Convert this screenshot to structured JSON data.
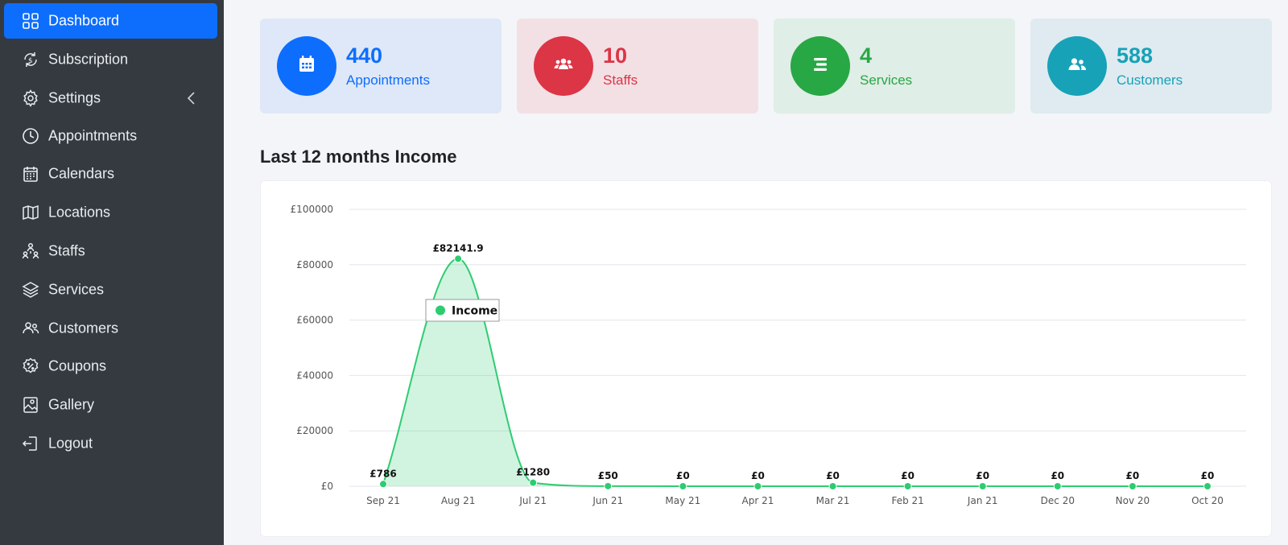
{
  "sidebar": {
    "items": [
      {
        "label": "Dashboard",
        "icon": "grid-icon",
        "active": true
      },
      {
        "label": "Subscription",
        "icon": "subscription-icon"
      },
      {
        "label": "Settings",
        "icon": "gear-icon",
        "has_chevron": true
      },
      {
        "label": "Appointments",
        "icon": "clock-icon"
      },
      {
        "label": "Calendars",
        "icon": "calendar-icon"
      },
      {
        "label": "Locations",
        "icon": "map-icon"
      },
      {
        "label": "Staffs",
        "icon": "staff-icon"
      },
      {
        "label": "Services",
        "icon": "layers-icon"
      },
      {
        "label": "Customers",
        "icon": "users-icon"
      },
      {
        "label": "Coupons",
        "icon": "coupon-icon"
      },
      {
        "label": "Gallery",
        "icon": "image-icon"
      },
      {
        "label": "Logout",
        "icon": "logout-icon"
      }
    ]
  },
  "stats": [
    {
      "value": "440",
      "label": "Appointments",
      "icon": "calendar-icon",
      "color": "#0d6efd",
      "bg": "#dfe8f8"
    },
    {
      "value": "10",
      "label": "Staffs",
      "icon": "users-group-icon",
      "color": "#dc3545",
      "bg": "#f3e0e5"
    },
    {
      "value": "4",
      "label": "Services",
      "icon": "list-icon",
      "color": "#28a745",
      "bg": "#dfeee6"
    },
    {
      "value": "588",
      "label": "Customers",
      "icon": "users-icon",
      "color": "#17a2b8",
      "bg": "#dfebf1"
    }
  ],
  "income_section": {
    "title": "Last 12 months Income"
  },
  "chart_data": {
    "type": "area",
    "x": [
      "Sep 21",
      "Aug 21",
      "Jul 21",
      "Jun 21",
      "May 21",
      "Apr 21",
      "Mar 21",
      "Feb 21",
      "Jan 21",
      "Dec 20",
      "Nov 20",
      "Oct 20"
    ],
    "series": [
      {
        "name": "Income",
        "values": [
          786,
          82141.9,
          1280,
          50,
          0,
          0,
          0,
          0,
          0,
          0,
          0,
          0
        ],
        "color": "#2ecc71"
      }
    ],
    "data_labels": [
      "£786",
      "£82141.9",
      "£1280",
      "£50",
      "£0",
      "£0",
      "£0",
      "£0",
      "£0",
      "£0",
      "£0",
      "£0"
    ],
    "ylim": [
      0,
      100000
    ],
    "y_ticks": [
      0,
      20000,
      40000,
      60000,
      80000,
      100000
    ],
    "y_tick_labels": [
      "£0",
      "£20000",
      "£40000",
      "£60000",
      "£80000",
      "£100000"
    ],
    "grid": true,
    "legend": {
      "label": "Income",
      "placement": "inside-top-left"
    }
  }
}
